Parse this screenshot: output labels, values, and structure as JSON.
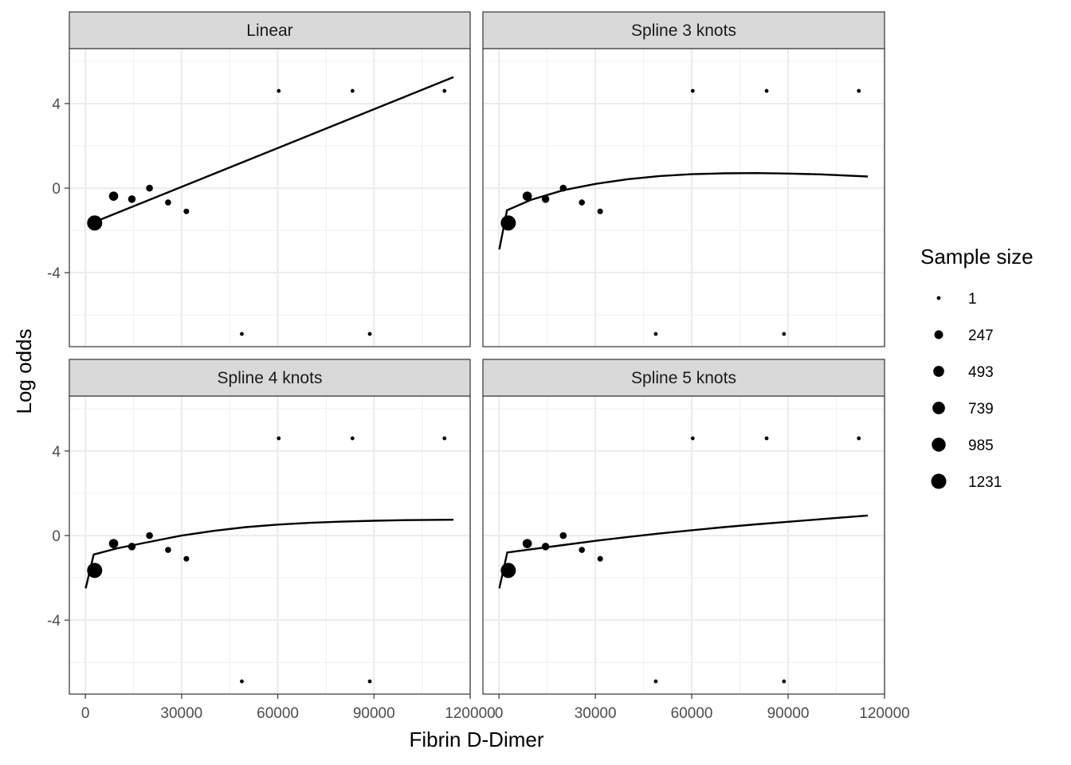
{
  "chart_data": {
    "type": "scatter",
    "xlabel": "Fibrin D-Dimer",
    "ylabel": "Log odds",
    "xlim": [
      -5000,
      120000
    ],
    "ylim": [
      -7.5,
      6.6
    ],
    "x_ticks": [
      0,
      30000,
      60000,
      90000,
      120000
    ],
    "x_tick_labels": [
      "0",
      "30000",
      "60000",
      "90000",
      "120000"
    ],
    "y_ticks": [
      4,
      0,
      -4
    ],
    "y_tick_labels": [
      "4",
      "0",
      "-4"
    ],
    "grid": true,
    "legend": {
      "title": "Sample size",
      "placement": "right",
      "entries": [
        {
          "label": "1",
          "value": 1
        },
        {
          "label": "247",
          "value": 247
        },
        {
          "label": "493",
          "value": 493
        },
        {
          "label": "739",
          "value": 739
        },
        {
          "label": "985",
          "value": 985
        },
        {
          "label": "1231",
          "value": 1231
        }
      ]
    },
    "points": [
      {
        "x": 2900,
        "y": -1.65,
        "n": 1231
      },
      {
        "x": 8800,
        "y": -0.38,
        "n": 300
      },
      {
        "x": 14500,
        "y": -0.52,
        "n": 150
      },
      {
        "x": 20000,
        "y": 0.0,
        "n": 100
      },
      {
        "x": 25800,
        "y": -0.68,
        "n": 60
      },
      {
        "x": 31500,
        "y": -1.1,
        "n": 40
      },
      {
        "x": 48800,
        "y": -6.9,
        "n": 1
      },
      {
        "x": 60300,
        "y": 4.6,
        "n": 1
      },
      {
        "x": 83300,
        "y": 4.6,
        "n": 1
      },
      {
        "x": 88700,
        "y": -6.9,
        "n": 1
      },
      {
        "x": 112000,
        "y": 4.6,
        "n": 1
      }
    ],
    "panels": [
      {
        "title": "Linear",
        "curve": {
          "x": [
            2900,
            114800
          ],
          "y": [
            -1.6,
            5.25
          ]
        }
      },
      {
        "title": "Spline 3 knots",
        "curve": {
          "x": [
            100,
            2500,
            10000,
            20000,
            30000,
            40000,
            50000,
            60000,
            70000,
            80000,
            90000,
            100000,
            114800
          ],
          "y": [
            -2.9,
            -1.05,
            -0.55,
            -0.1,
            0.2,
            0.42,
            0.57,
            0.66,
            0.7,
            0.71,
            0.69,
            0.65,
            0.55
          ]
        }
      },
      {
        "title": "Spline 4 knots",
        "curve": {
          "x": [
            100,
            2600,
            10000,
            20000,
            30000,
            40000,
            50000,
            60000,
            70000,
            80000,
            90000,
            100000,
            114800
          ],
          "y": [
            -2.5,
            -0.9,
            -0.6,
            -0.3,
            0.0,
            0.22,
            0.4,
            0.52,
            0.6,
            0.66,
            0.7,
            0.73,
            0.75
          ]
        }
      },
      {
        "title": "Spline 5 knots",
        "curve": {
          "x": [
            100,
            2600,
            10000,
            20000,
            30000,
            40000,
            50000,
            60000,
            70000,
            80000,
            90000,
            100000,
            114800
          ],
          "y": [
            -2.5,
            -0.8,
            -0.65,
            -0.45,
            -0.25,
            -0.07,
            0.1,
            0.25,
            0.4,
            0.53,
            0.65,
            0.77,
            0.95
          ]
        }
      }
    ]
  }
}
